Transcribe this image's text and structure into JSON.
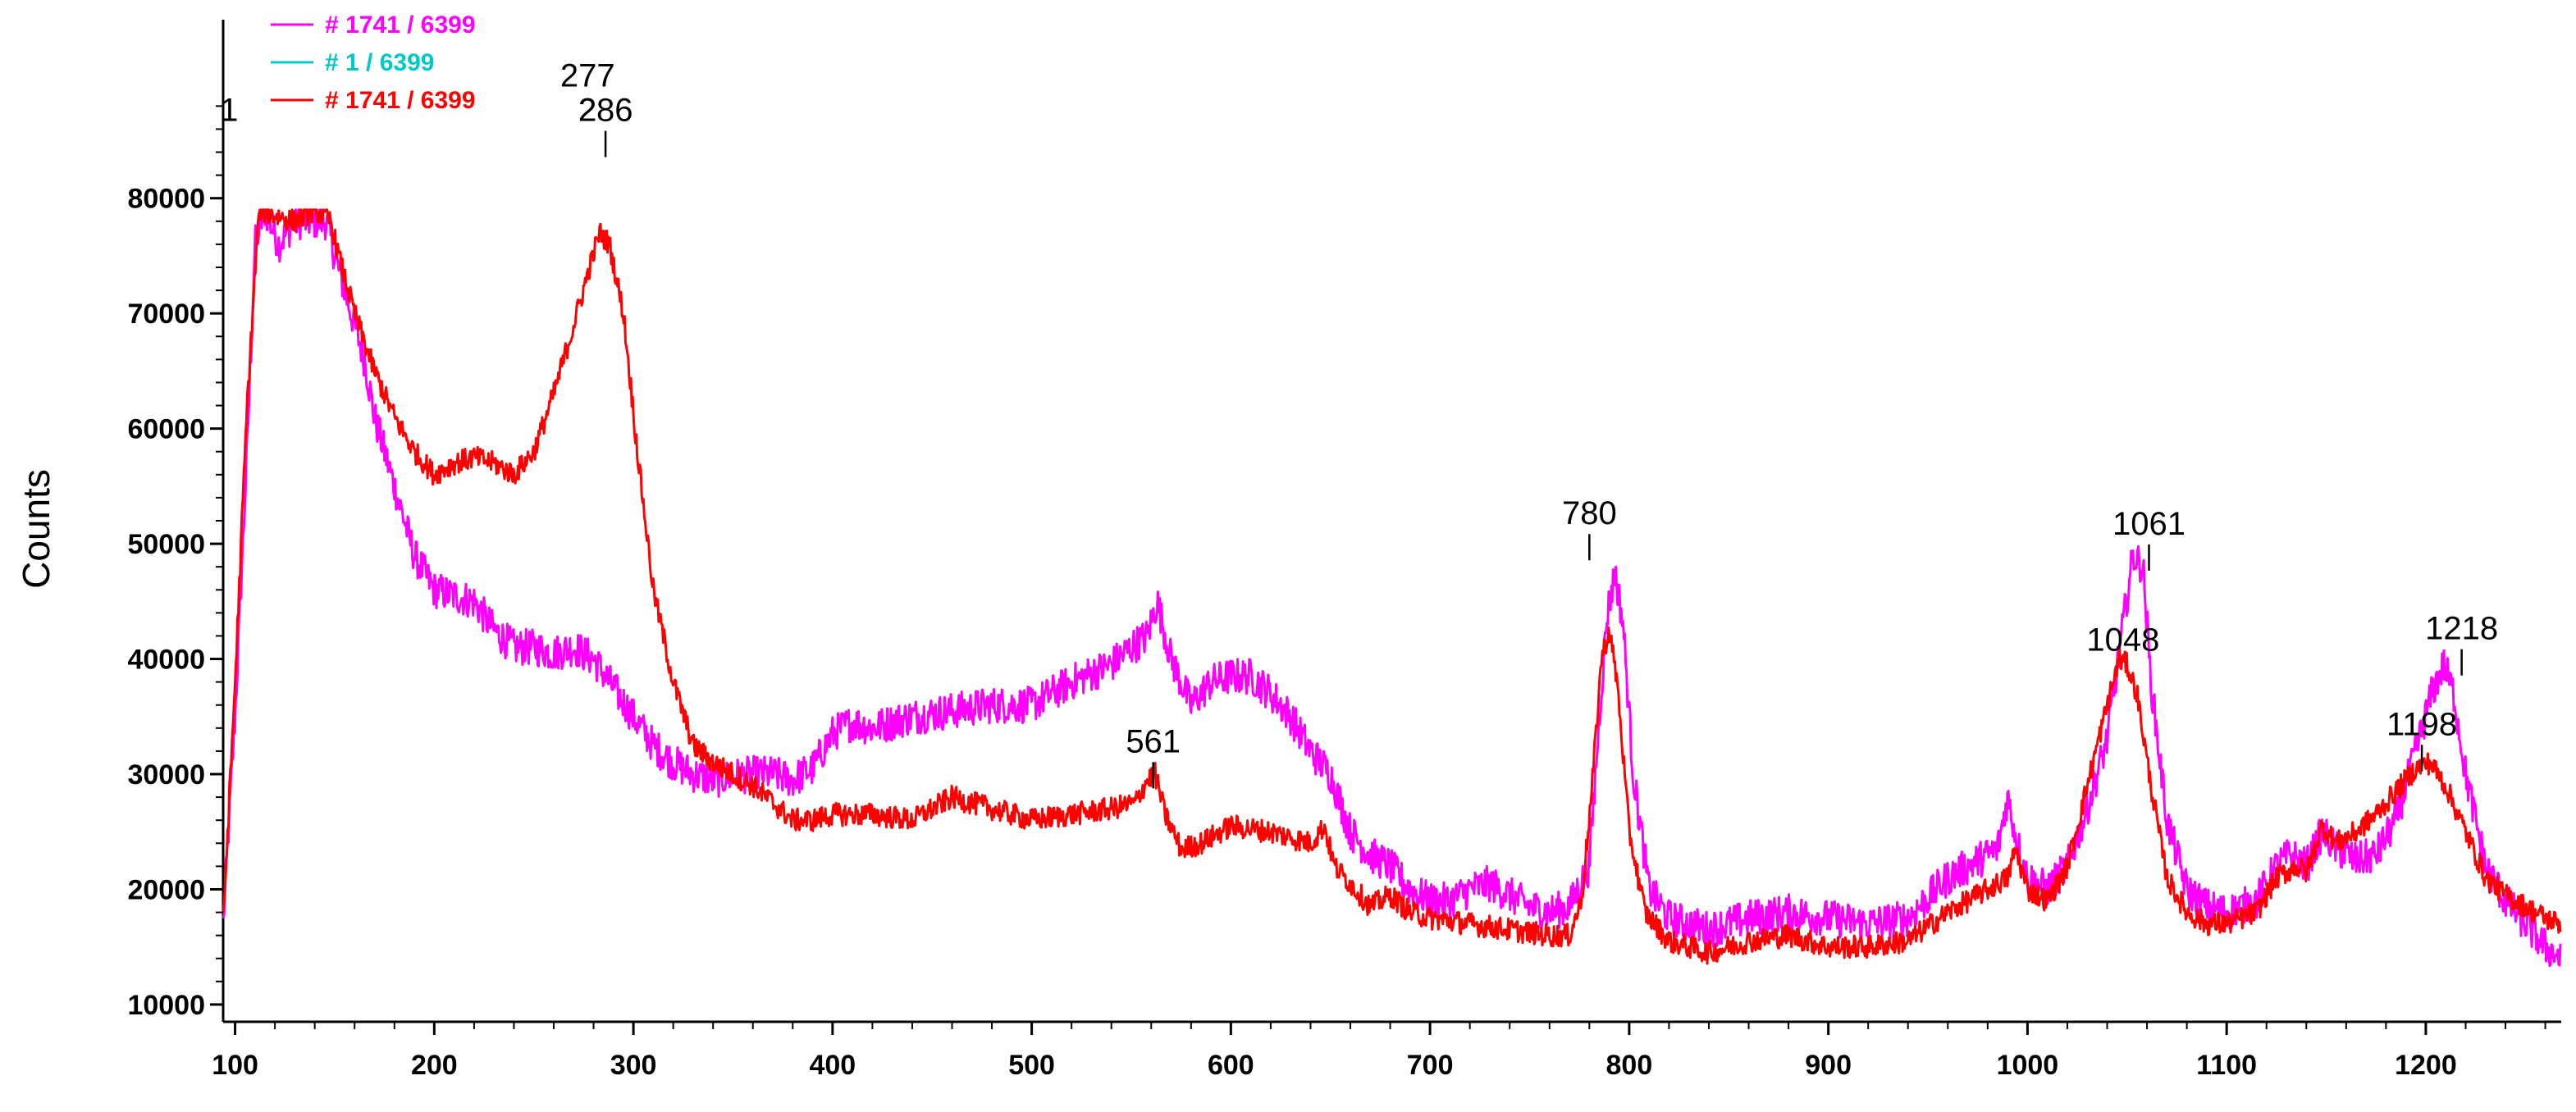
{
  "chart_data": {
    "type": "line",
    "title": "",
    "xlabel": "",
    "ylabel": "Counts",
    "xlim": [
      94,
      1268
    ],
    "ylim": [
      8500,
      95500
    ],
    "grid": false,
    "legend_placement": "top-left",
    "x_ticks": [
      100,
      200,
      300,
      400,
      500,
      600,
      700,
      800,
      900,
      1000,
      1100,
      1200
    ],
    "y_ticks": [
      10000,
      20000,
      30000,
      40000,
      50000,
      60000,
      70000,
      80000
    ],
    "series": [
      {
        "name": "# 1741 / 6399",
        "color": "#ff00ff",
        "noise": 1600,
        "points": [
          [
            94,
            17000
          ],
          [
            100,
            35000
          ],
          [
            106,
            58000
          ],
          [
            110,
            76000
          ],
          [
            115,
            79000
          ],
          [
            122,
            76000
          ],
          [
            130,
            78000
          ],
          [
            138,
            78000
          ],
          [
            146,
            78000
          ],
          [
            150,
            75000
          ],
          [
            155,
            72000
          ],
          [
            160,
            69000
          ],
          [
            165,
            66000
          ],
          [
            170,
            61000
          ],
          [
            180,
            55000
          ],
          [
            190,
            49000
          ],
          [
            200,
            46000
          ],
          [
            210,
            45500
          ],
          [
            220,
            45000
          ],
          [
            230,
            42500
          ],
          [
            240,
            41000
          ],
          [
            250,
            41000
          ],
          [
            260,
            40500
          ],
          [
            270,
            41000
          ],
          [
            280,
            40000
          ],
          [
            290,
            37500
          ],
          [
            300,
            35000
          ],
          [
            310,
            32500
          ],
          [
            320,
            31000
          ],
          [
            330,
            30000
          ],
          [
            340,
            29500
          ],
          [
            350,
            29800
          ],
          [
            360,
            30000
          ],
          [
            370,
            30000
          ],
          [
            380,
            29500
          ],
          [
            390,
            30500
          ],
          [
            400,
            33500
          ],
          [
            410,
            34500
          ],
          [
            420,
            34000
          ],
          [
            440,
            35000
          ],
          [
            460,
            35500
          ],
          [
            480,
            36000
          ],
          [
            500,
            36000
          ],
          [
            520,
            38000
          ],
          [
            540,
            39500
          ],
          [
            550,
            41000
          ],
          [
            558,
            42000
          ],
          [
            563,
            45000
          ],
          [
            570,
            40000
          ],
          [
            580,
            36000
          ],
          [
            590,
            38000
          ],
          [
            600,
            38500
          ],
          [
            610,
            38500
          ],
          [
            620,
            37000
          ],
          [
            630,
            35000
          ],
          [
            640,
            32000
          ],
          [
            650,
            30000
          ],
          [
            660,
            25000
          ],
          [
            670,
            23000
          ],
          [
            680,
            22000
          ],
          [
            690,
            20000
          ],
          [
            700,
            19000
          ],
          [
            710,
            19000
          ],
          [
            720,
            20000
          ],
          [
            730,
            20500
          ],
          [
            740,
            19500
          ],
          [
            750,
            18500
          ],
          [
            760,
            18000
          ],
          [
            770,
            18500
          ],
          [
            780,
            22000
          ],
          [
            785,
            35000
          ],
          [
            789,
            44000
          ],
          [
            793,
            47500
          ],
          [
            797,
            43000
          ],
          [
            802,
            30000
          ],
          [
            810,
            20000
          ],
          [
            820,
            17500
          ],
          [
            840,
            16500
          ],
          [
            860,
            17500
          ],
          [
            880,
            18000
          ],
          [
            900,
            17500
          ],
          [
            920,
            17000
          ],
          [
            940,
            17500
          ],
          [
            960,
            21000
          ],
          [
            975,
            22500
          ],
          [
            985,
            23500
          ],
          [
            990,
            28000
          ],
          [
            995,
            24000
          ],
          [
            1000,
            21000
          ],
          [
            1010,
            20000
          ],
          [
            1020,
            22000
          ],
          [
            1030,
            27000
          ],
          [
            1040,
            33000
          ],
          [
            1048,
            43000
          ],
          [
            1053,
            49000
          ],
          [
            1058,
            48000
          ],
          [
            1062,
            38000
          ],
          [
            1070,
            26000
          ],
          [
            1080,
            20000
          ],
          [
            1090,
            18500
          ],
          [
            1100,
            18000
          ],
          [
            1115,
            19000
          ],
          [
            1125,
            22000
          ],
          [
            1132,
            23000
          ],
          [
            1140,
            22000
          ],
          [
            1148,
            25000
          ],
          [
            1155,
            23500
          ],
          [
            1165,
            22500
          ],
          [
            1175,
            23000
          ],
          [
            1185,
            26000
          ],
          [
            1195,
            32000
          ],
          [
            1203,
            37000
          ],
          [
            1209,
            39500
          ],
          [
            1214,
            37000
          ],
          [
            1220,
            30000
          ],
          [
            1230,
            22000
          ],
          [
            1240,
            19000
          ],
          [
            1250,
            17000
          ],
          [
            1260,
            15000
          ],
          [
            1268,
            14000
          ]
        ]
      },
      {
        "name": "# 1 / 6399",
        "color": "#00c8c8",
        "noise": 0,
        "points": []
      },
      {
        "name": "# 1741 / 6399",
        "color": "#ff0000",
        "noise": 1000,
        "points": [
          [
            94,
            17000
          ],
          [
            100,
            38000
          ],
          [
            106,
            62000
          ],
          [
            112,
            79000
          ],
          [
            120,
            78500
          ],
          [
            130,
            78000
          ],
          [
            140,
            79000
          ],
          [
            148,
            78000
          ],
          [
            152,
            75000
          ],
          [
            160,
            70000
          ],
          [
            170,
            65000
          ],
          [
            180,
            61000
          ],
          [
            190,
            58000
          ],
          [
            200,
            56000
          ],
          [
            210,
            57000
          ],
          [
            220,
            57500
          ],
          [
            230,
            57000
          ],
          [
            240,
            56000
          ],
          [
            250,
            58000
          ],
          [
            260,
            63000
          ],
          [
            270,
            69000
          ],
          [
            278,
            74000
          ],
          [
            283,
            77000
          ],
          [
            288,
            76000
          ],
          [
            295,
            70000
          ],
          [
            302,
            58000
          ],
          [
            310,
            46000
          ],
          [
            320,
            38000
          ],
          [
            330,
            32500
          ],
          [
            340,
            31000
          ],
          [
            350,
            30000
          ],
          [
            360,
            29000
          ],
          [
            370,
            27500
          ],
          [
            380,
            26000
          ],
          [
            390,
            26000
          ],
          [
            400,
            26500
          ],
          [
            420,
            26500
          ],
          [
            440,
            26000
          ],
          [
            460,
            28000
          ],
          [
            480,
            27000
          ],
          [
            500,
            26000
          ],
          [
            520,
            26500
          ],
          [
            540,
            27000
          ],
          [
            552,
            27500
          ],
          [
            558,
            29500
          ],
          [
            562,
            30000
          ],
          [
            567,
            26500
          ],
          [
            575,
            23500
          ],
          [
            585,
            24000
          ],
          [
            600,
            25500
          ],
          [
            620,
            25000
          ],
          [
            630,
            24500
          ],
          [
            640,
            24000
          ],
          [
            647,
            25500
          ],
          [
            652,
            22000
          ],
          [
            660,
            20500
          ],
          [
            670,
            18500
          ],
          [
            680,
            19500
          ],
          [
            690,
            18000
          ],
          [
            700,
            17500
          ],
          [
            720,
            17000
          ],
          [
            740,
            16500
          ],
          [
            760,
            16000
          ],
          [
            770,
            16000
          ],
          [
            776,
            19000
          ],
          [
            781,
            28000
          ],
          [
            786,
            40000
          ],
          [
            790,
            42500
          ],
          [
            794,
            38000
          ],
          [
            800,
            25000
          ],
          [
            808,
            18000
          ],
          [
            820,
            15500
          ],
          [
            840,
            14500
          ],
          [
            860,
            15500
          ],
          [
            880,
            16000
          ],
          [
            900,
            15000
          ],
          [
            920,
            15000
          ],
          [
            940,
            15500
          ],
          [
            960,
            18000
          ],
          [
            980,
            20000
          ],
          [
            990,
            21000
          ],
          [
            994,
            23500
          ],
          [
            1000,
            20000
          ],
          [
            1010,
            19000
          ],
          [
            1020,
            22000
          ],
          [
            1030,
            29000
          ],
          [
            1040,
            36000
          ],
          [
            1046,
            40000
          ],
          [
            1050,
            39500
          ],
          [
            1055,
            37000
          ],
          [
            1062,
            29000
          ],
          [
            1070,
            21000
          ],
          [
            1080,
            18000
          ],
          [
            1090,
            17000
          ],
          [
            1100,
            17000
          ],
          [
            1115,
            18000
          ],
          [
            1125,
            21000
          ],
          [
            1135,
            22000
          ],
          [
            1140,
            21500
          ],
          [
            1148,
            25500
          ],
          [
            1155,
            24000
          ],
          [
            1165,
            25000
          ],
          [
            1175,
            26500
          ],
          [
            1185,
            28500
          ],
          [
            1195,
            30500
          ],
          [
            1202,
            31000
          ],
          [
            1210,
            29000
          ],
          [
            1220,
            25000
          ],
          [
            1230,
            21000
          ],
          [
            1240,
            19500
          ],
          [
            1250,
            18500
          ],
          [
            1260,
            17500
          ],
          [
            1268,
            17000
          ]
        ]
      }
    ],
    "peak_labels": [
      {
        "text": "1",
        "x": 97,
        "y": 86700,
        "tick": false
      },
      {
        "text": "277",
        "x": 277,
        "y": 89700,
        "tick": false
      },
      {
        "text": "2",
        "x": 277,
        "y": 86700,
        "tick": false
      },
      {
        "text": "286",
        "x": 286,
        "y": 86700,
        "tick": true
      },
      {
        "text": "561",
        "x": 561,
        "y": 31900,
        "tick": true
      },
      {
        "text": "780",
        "x": 780,
        "y": 51700,
        "tick": true
      },
      {
        "text": "1048",
        "x": 1048,
        "y": 40700,
        "tick": false
      },
      {
        "text": "1061",
        "x": 1061,
        "y": 50800,
        "tick": true
      },
      {
        "text": "1198",
        "x": 1198,
        "y": 33400,
        "tick": true
      },
      {
        "text": "1218",
        "x": 1218,
        "y": 41700,
        "tick": true
      }
    ]
  }
}
